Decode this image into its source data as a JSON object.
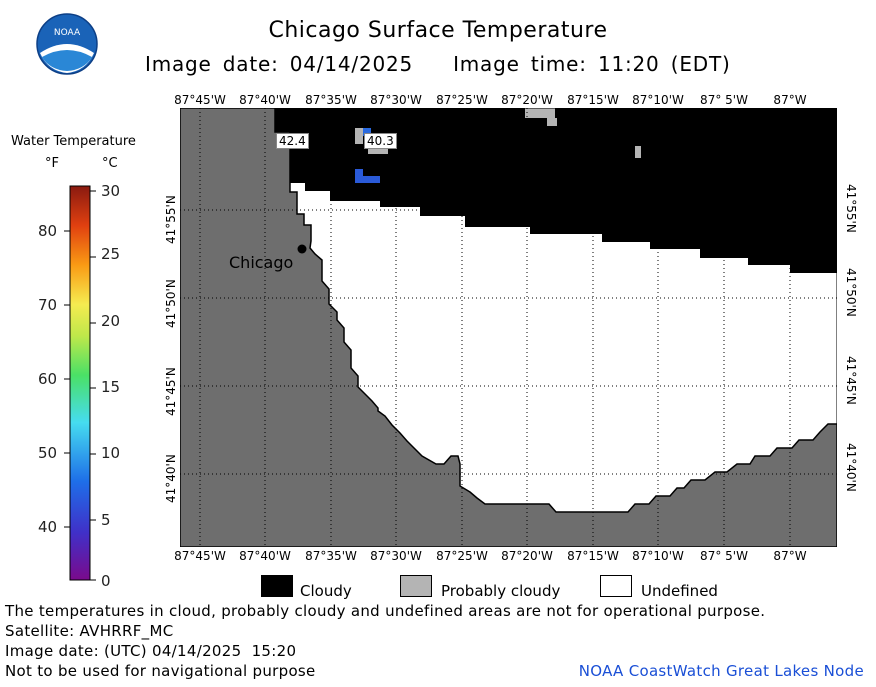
{
  "header": {
    "title": "Chicago Surface Temperature",
    "image_date": "Image date: 04/14/2025",
    "image_time": "Image time: 11:20 (EDT)"
  },
  "map": {
    "lon_labels": [
      "87°45'W",
      "87°40'W",
      "87°35'W",
      "87°30'W",
      "87°25'W",
      "87°20'W",
      "87°15'W",
      "87°10'W",
      "87° 5'W",
      "87°W"
    ],
    "lat_labels": [
      "41°55'N",
      "41°50'N",
      "41°45'N",
      "41°40'N"
    ],
    "city": "Chicago",
    "temp_labels": [
      "42.4",
      "40.3"
    ]
  },
  "colorbar": {
    "title": "Water Temperature",
    "unit_f": "°F",
    "unit_c": "°C",
    "ticks_f": [
      "80",
      "70",
      "60",
      "50",
      "40"
    ],
    "ticks_c": [
      "30",
      "25",
      "20",
      "15",
      "10",
      "5",
      "0"
    ]
  },
  "legend": {
    "cloudy": "Cloudy",
    "probably_cloudy": "Probably cloudy",
    "undefined": "Undefined",
    "colors": {
      "cloudy": "#000000",
      "probably_cloudy": "#b4b4b4",
      "undefined": "#ffffff",
      "land": "#6e6e6e"
    }
  },
  "footer": {
    "disclaimer": "The temperatures in cloud, probably cloudy and undefined areas are not for operational purpose.",
    "satellite": "Satellite: AVHRRF_MC",
    "utc_date": "Image date: (UTC) 04/14/2025  15:20",
    "nav_warning": "Not to be used for navigational purpose",
    "credit": "NOAA CoastWatch Great Lakes Node"
  }
}
